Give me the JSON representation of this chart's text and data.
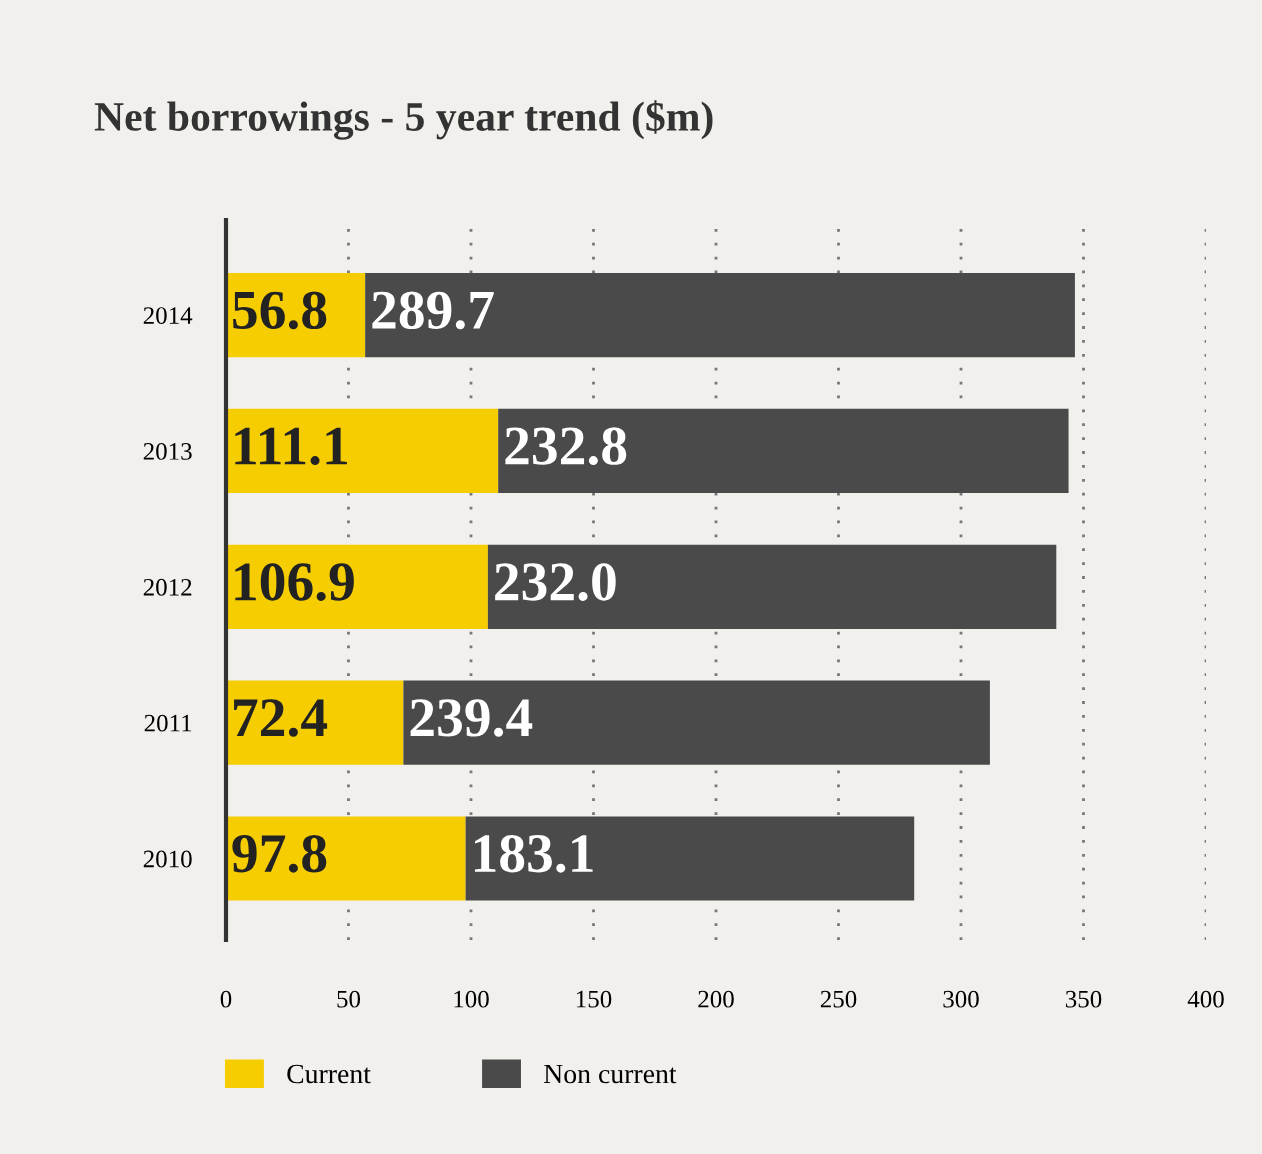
{
  "chart_data": {
    "type": "bar",
    "orientation": "horizontal",
    "stacked": true,
    "title": "Net borrowings - 5 year trend ($m)",
    "categories": [
      "2014",
      "2013",
      "2012",
      "2011",
      "2010"
    ],
    "series": [
      {
        "name": "Current",
        "color": "#f5cd00",
        "values": [
          56.8,
          111.1,
          106.9,
          72.4,
          97.8
        ],
        "value_labels": [
          "56.8",
          "111.1",
          "106.9",
          "72.4",
          "97.8"
        ]
      },
      {
        "name": "Non current",
        "color": "#4a4a4a",
        "values": [
          289.7,
          232.8,
          232.0,
          239.4,
          183.1
        ],
        "value_labels": [
          "289.7",
          "232.8",
          "232.0",
          "239.4",
          "183.1"
        ]
      }
    ],
    "xlim": [
      0,
      400
    ],
    "xticks": [
      0,
      50,
      100,
      150,
      200,
      250,
      300,
      350,
      400
    ],
    "grid": "x",
    "legend": "bottom"
  }
}
